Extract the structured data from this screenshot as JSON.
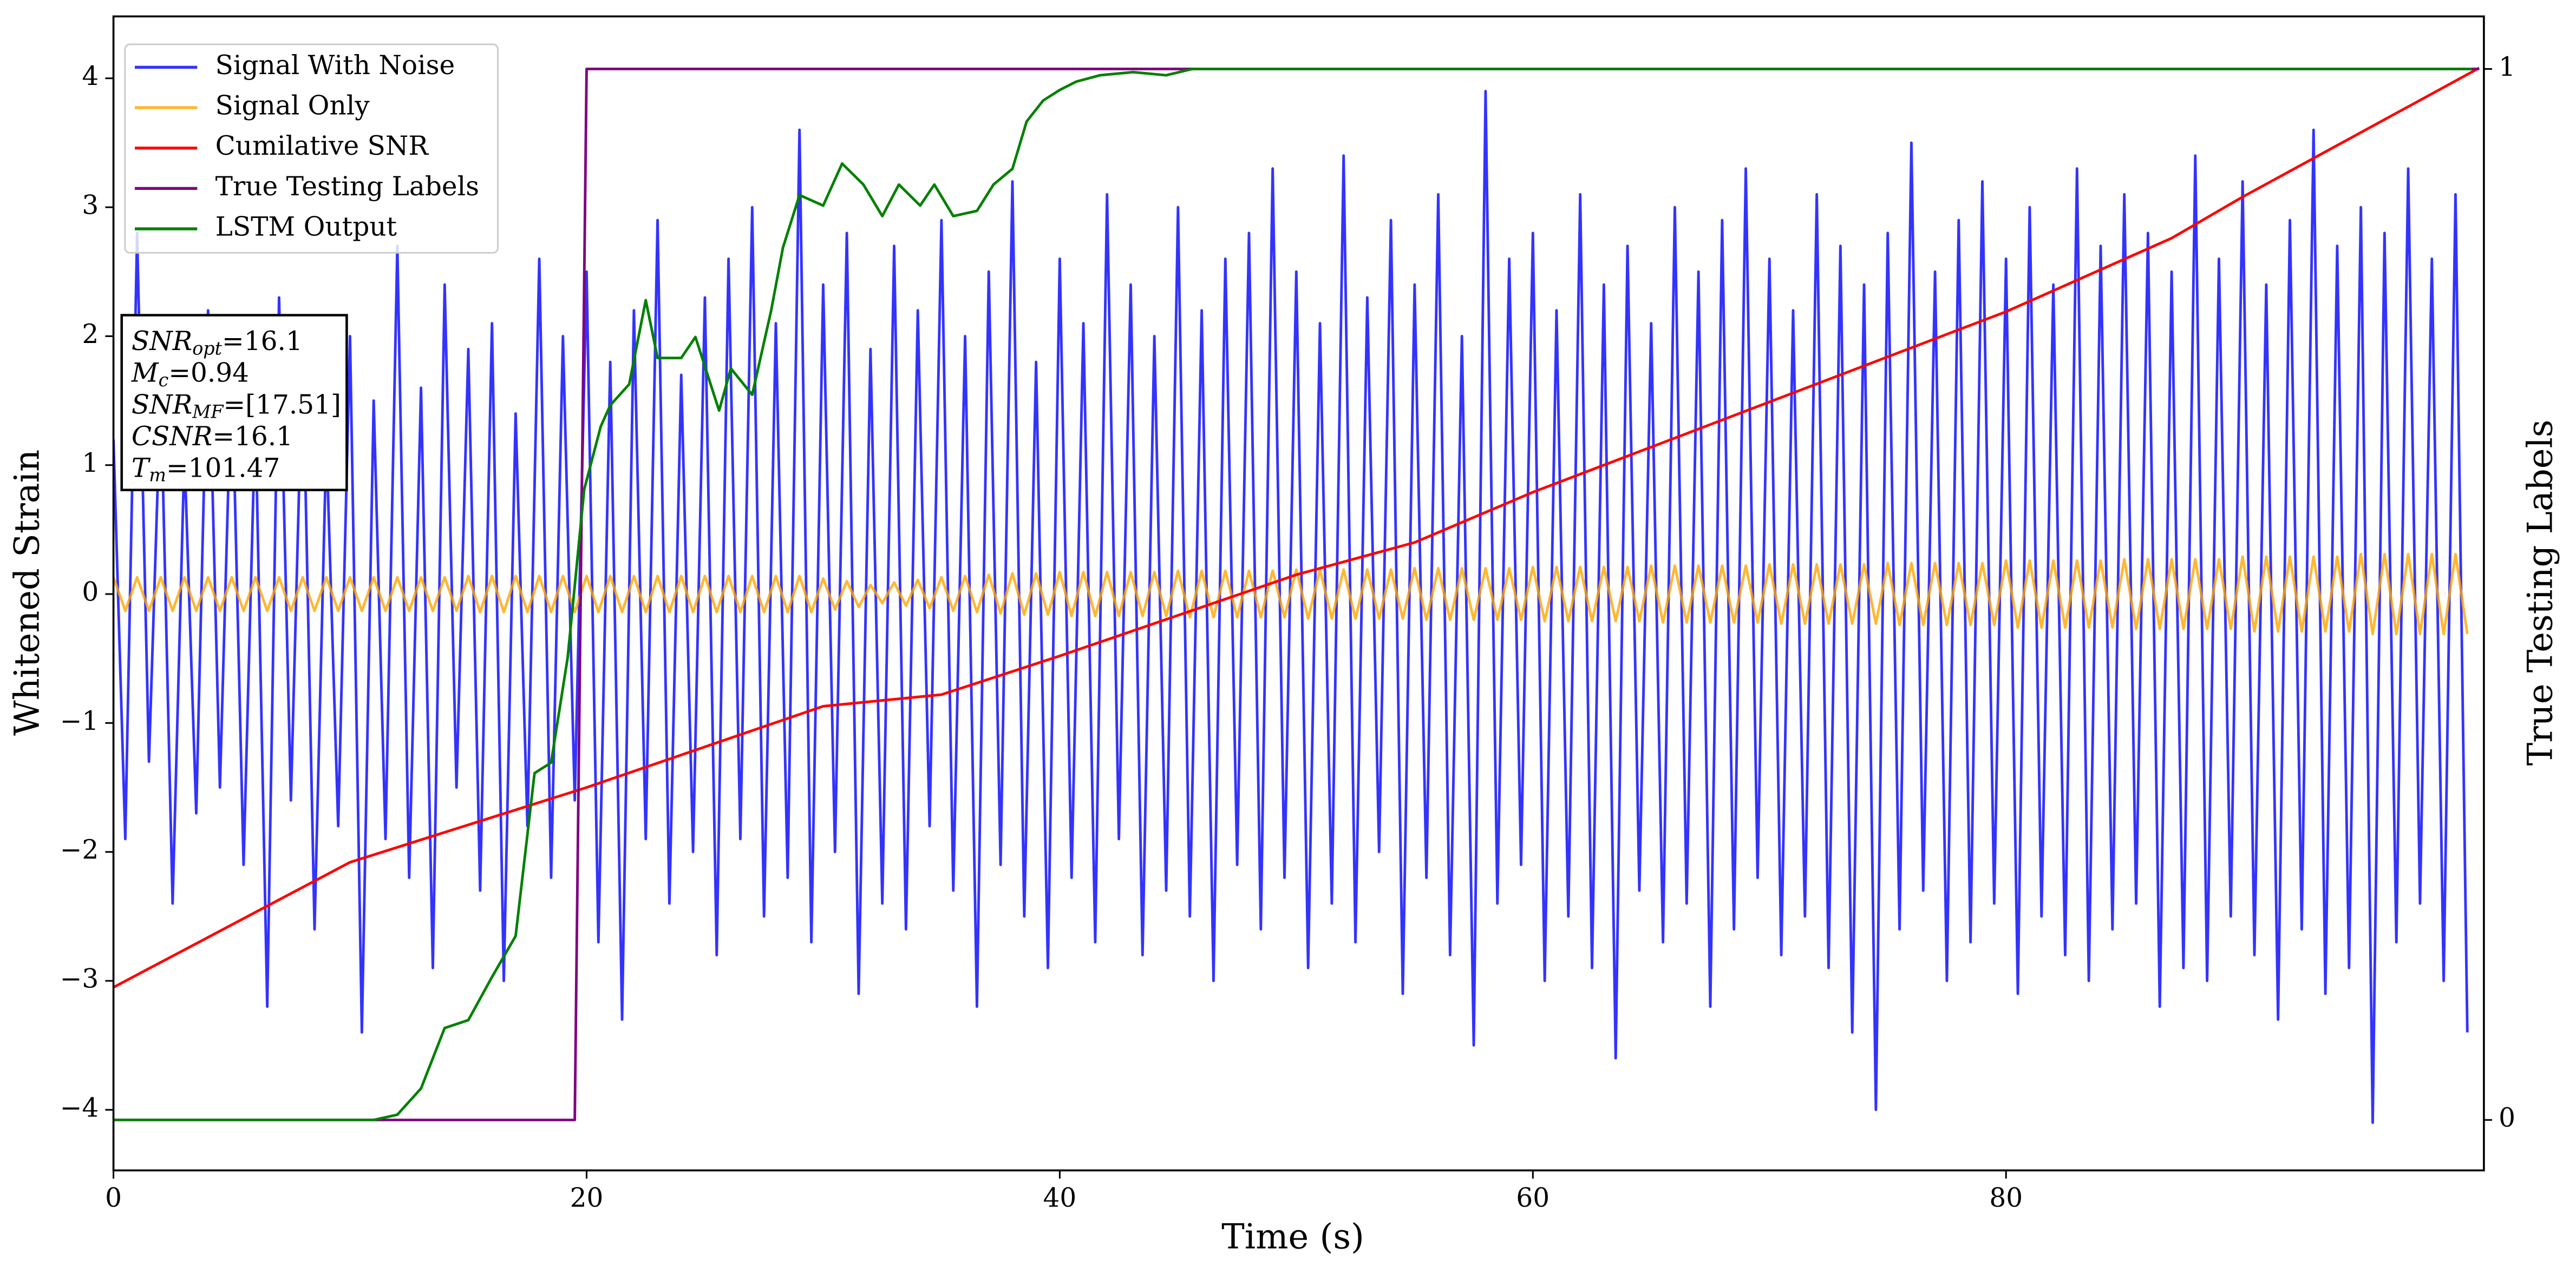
{
  "chart_data": {
    "type": "line",
    "xlabel": "Time (s)",
    "ylabel": "Whitened Strain",
    "y2label": "True Testing Labels",
    "xlim": [
      0,
      100.2
    ],
    "xticks": [
      0,
      20,
      40,
      60,
      80
    ],
    "ylim": [
      -4.47,
      4.48
    ],
    "yticks": [
      {
        "value": -4,
        "label": "−4"
      },
      {
        "value": -3,
        "label": "−3"
      },
      {
        "value": -2,
        "label": "−2"
      },
      {
        "value": -1,
        "label": "−1"
      },
      0,
      1,
      2,
      3,
      4
    ],
    "y2lim": [
      -0.048,
      1.05
    ],
    "y2ticks": [
      0,
      1
    ],
    "legend": "upper left",
    "x": [
      0,
      0.5,
      1,
      1.5,
      2,
      2.5,
      3,
      3.5,
      4,
      4.5,
      5,
      5.5,
      6,
      6.5,
      7,
      7.5,
      8,
      8.5,
      9,
      9.5,
      10,
      10.5,
      11,
      11.5,
      12,
      12.5,
      13,
      13.5,
      14,
      14.5,
      15,
      15.5,
      16,
      16.5,
      17,
      17.5,
      18,
      18.5,
      19,
      19.5,
      20,
      20.5,
      21,
      21.5,
      22,
      22.5,
      23,
      23.5,
      24,
      24.5,
      25,
      25.5,
      26,
      26.5,
      27,
      27.5,
      28,
      28.5,
      29,
      29.5,
      30,
      30.5,
      31,
      31.5,
      32,
      32.5,
      33,
      33.5,
      34,
      34.5,
      35,
      35.5,
      36,
      36.5,
      37,
      37.5,
      38,
      38.5,
      39,
      39.5,
      40,
      40.5,
      41,
      41.5,
      42,
      42.5,
      43,
      43.5,
      44,
      44.5,
      45,
      45.5,
      46,
      46.5,
      47,
      47.5,
      48,
      48.5,
      49,
      49.5,
      50,
      50.5,
      51,
      51.5,
      52,
      52.5,
      53,
      53.5,
      54,
      54.5,
      55,
      55.5,
      56,
      56.5,
      57,
      57.5,
      58,
      58.5,
      59,
      59.5,
      60,
      60.5,
      61,
      61.5,
      62,
      62.5,
      63,
      63.5,
      64,
      64.5,
      65,
      65.5,
      66,
      66.5,
      67,
      67.5,
      68,
      68.5,
      69,
      69.5,
      70,
      70.5,
      71,
      71.5,
      72,
      72.5,
      73,
      73.5,
      74,
      74.5,
      75,
      75.5,
      76,
      76.5,
      77,
      77.5,
      78,
      78.5,
      79,
      79.5,
      80,
      80.5,
      81,
      81.5,
      82,
      82.5,
      83,
      83.5,
      84,
      84.5,
      85,
      85.5,
      86,
      86.5,
      87,
      87.5,
      88,
      88.5,
      89,
      89.5,
      90,
      90.5,
      91,
      91.5,
      92,
      92.5,
      93,
      93.5,
      94,
      94.5,
      95,
      95.5,
      96,
      96.5,
      97,
      97.5,
      98,
      98.5,
      99,
      99.5
    ],
    "series": [
      {
        "name": "Signal With Noise",
        "color": "#0000ff",
        "alpha": 0.8,
        "values": [
          1.2,
          -1.9,
          2.8,
          -1.3,
          1.6,
          -2.4,
          1.1,
          -1.7,
          2.2,
          -1.5,
          1.8,
          -2.1,
          1.4,
          -3.2,
          2.3,
          -1.6,
          1.9,
          -2.6,
          1.2,
          -1.8,
          2.0,
          -3.4,
          1.5,
          -1.9,
          2.7,
          -2.2,
          1.6,
          -2.9,
          2.4,
          -1.5,
          1.9,
          -2.3,
          2.1,
          -3.0,
          1.4,
          -1.8,
          2.6,
          -2.2,
          2.0,
          -1.6,
          2.5,
          -2.7,
          1.8,
          -3.3,
          2.2,
          -1.9,
          2.9,
          -2.4,
          1.7,
          -2.0,
          2.3,
          -2.8,
          2.6,
          -1.9,
          3.0,
          -2.5,
          2.1,
          -2.2,
          3.6,
          -2.7,
          2.4,
          -2.0,
          2.8,
          -3.1,
          1.9,
          -2.4,
          2.7,
          -2.6,
          2.2,
          -1.8,
          2.9,
          -2.3,
          2.0,
          -3.2,
          2.5,
          -2.1,
          3.2,
          -2.5,
          1.8,
          -2.9,
          2.6,
          -2.2,
          2.1,
          -2.7,
          3.1,
          -1.9,
          2.4,
          -2.8,
          2.0,
          -2.3,
          3.0,
          -2.5,
          2.2,
          -3.0,
          2.6,
          -2.1,
          2.8,
          -2.6,
          3.3,
          -2.2,
          2.5,
          -2.9,
          2.1,
          -2.4,
          3.4,
          -2.7,
          2.3,
          -2.0,
          2.9,
          -3.1,
          2.4,
          -2.2,
          3.1,
          -2.8,
          2.0,
          -3.5,
          3.9,
          -2.4,
          2.6,
          -2.1,
          2.8,
          -3.0,
          2.2,
          -2.5,
          3.1,
          -2.9,
          2.4,
          -3.6,
          2.7,
          -2.3,
          2.1,
          -2.7,
          3.0,
          -2.4,
          2.5,
          -3.2,
          2.9,
          -2.6,
          3.3,
          -2.2,
          2.6,
          -2.8,
          2.2,
          -2.5,
          3.1,
          -2.9,
          2.7,
          -3.4,
          2.4,
          -4.0,
          2.8,
          -2.6,
          3.5,
          -2.3,
          2.5,
          -3.0,
          2.9,
          -2.7,
          3.2,
          -2.4,
          2.6,
          -3.1,
          3.0,
          -2.5,
          2.4,
          -2.8,
          3.3,
          -3.0,
          2.7,
          -2.6,
          3.1,
          -2.4,
          2.8,
          -3.2,
          2.5,
          -2.9,
          3.4,
          -3.0,
          2.6,
          -2.5,
          3.2,
          -2.8,
          2.4,
          -3.3,
          2.9,
          -2.6,
          3.6,
          -3.1,
          2.7,
          -2.9,
          3.0,
          -4.1,
          2.8,
          -2.7,
          3.3,
          -2.4,
          2.6,
          -3.0,
          3.1,
          -3.4
        ]
      },
      {
        "name": "Signal Only",
        "color": "#ffa500",
        "alpha": 0.8,
        "values": [
          0.13,
          -0.13,
          0.13,
          -0.13,
          0.13,
          -0.13,
          0.13,
          -0.13,
          0.13,
          -0.13,
          0.13,
          -0.13,
          0.13,
          -0.13,
          0.13,
          -0.13,
          0.13,
          -0.13,
          0.13,
          -0.13,
          0.13,
          -0.13,
          0.13,
          -0.13,
          0.13,
          -0.13,
          0.13,
          -0.13,
          0.13,
          -0.13,
          0.14,
          -0.14,
          0.14,
          -0.14,
          0.14,
          -0.14,
          0.14,
          -0.14,
          0.14,
          -0.14,
          0.14,
          -0.14,
          0.14,
          -0.14,
          0.14,
          -0.14,
          0.14,
          -0.14,
          0.14,
          -0.14,
          0.14,
          -0.14,
          0.14,
          -0.14,
          0.14,
          -0.14,
          0.14,
          -0.14,
          0.14,
          -0.14,
          0.12,
          -0.12,
          0.1,
          -0.1,
          0.07,
          -0.07,
          0.09,
          -0.09,
          0.11,
          -0.11,
          0.13,
          -0.13,
          0.14,
          -0.14,
          0.15,
          -0.15,
          0.16,
          -0.16,
          0.16,
          -0.16,
          0.17,
          -0.17,
          0.17,
          -0.17,
          0.17,
          -0.17,
          0.17,
          -0.17,
          0.17,
          -0.17,
          0.18,
          -0.18,
          0.18,
          -0.18,
          0.18,
          -0.18,
          0.18,
          -0.18,
          0.18,
          -0.18,
          0.19,
          -0.19,
          0.19,
          -0.19,
          0.19,
          -0.19,
          0.19,
          -0.19,
          0.19,
          -0.19,
          0.2,
          -0.2,
          0.2,
          -0.2,
          0.2,
          -0.2,
          0.2,
          -0.2,
          0.2,
          -0.2,
          0.21,
          -0.21,
          0.21,
          -0.21,
          0.21,
          -0.21,
          0.21,
          -0.21,
          0.21,
          -0.21,
          0.22,
          -0.22,
          0.22,
          -0.22,
          0.22,
          -0.22,
          0.22,
          -0.22,
          0.22,
          -0.22,
          0.23,
          -0.23,
          0.23,
          -0.23,
          0.23,
          -0.23,
          0.23,
          -0.23,
          0.23,
          -0.23,
          0.24,
          -0.24,
          0.24,
          -0.24,
          0.24,
          -0.24,
          0.24,
          -0.24,
          0.24,
          -0.24,
          0.26,
          -0.26,
          0.26,
          -0.26,
          0.26,
          -0.26,
          0.26,
          -0.26,
          0.26,
          -0.26,
          0.27,
          -0.27,
          0.27,
          -0.27,
          0.27,
          -0.27,
          0.27,
          -0.27,
          0.27,
          -0.27,
          0.29,
          -0.29,
          0.29,
          -0.29,
          0.29,
          -0.29,
          0.29,
          -0.29,
          0.29,
          -0.29,
          0.31,
          -0.31,
          0.31,
          -0.31,
          0.31,
          -0.31,
          0.31,
          -0.31,
          0.31,
          -0.31
        ]
      },
      {
        "name": "Cumilative SNR",
        "color": "#ff0000",
        "x": [
          0,
          10,
          20,
          30,
          35,
          40,
          50,
          55,
          60,
          70,
          80,
          87,
          90,
          100
        ],
        "values": [
          -3.05,
          -2.08,
          -1.5,
          -0.87,
          -0.78,
          -0.48,
          0.15,
          0.4,
          0.79,
          1.49,
          2.19,
          2.76,
          3.08,
          4.08
        ]
      },
      {
        "name": "True Testing Labels",
        "color": "#800080",
        "axis": "y2",
        "x": [
          0,
          19.5,
          20,
          100
        ],
        "values": [
          0,
          0,
          1,
          1
        ]
      },
      {
        "name": "LSTM Output",
        "color": "#008000",
        "axis": "y2",
        "x": [
          0,
          11,
          12,
          13,
          14,
          15,
          16,
          17,
          17.8,
          18.5,
          19.2,
          19.9,
          20.6,
          21,
          21.8,
          22.5,
          23,
          24,
          24.6,
          25.6,
          26.1,
          27,
          27.8,
          28.3,
          29,
          30,
          30.8,
          31.7,
          32.5,
          33.2,
          34.1,
          34.7,
          35.5,
          36.5,
          37.2,
          38,
          38.6,
          39.3,
          40,
          40.7,
          41.7,
          43.1,
          44.5,
          45.6,
          48,
          99.7
        ],
        "values": [
          0,
          0,
          0.005,
          0.03,
          0.0875,
          0.095,
          0.136,
          0.175,
          0.33,
          0.34,
          0.44,
          0.6,
          0.66,
          0.68,
          0.7,
          0.78,
          0.725,
          0.725,
          0.745,
          0.675,
          0.715,
          0.69,
          0.77,
          0.83,
          0.88,
          0.87,
          0.91,
          0.89,
          0.86,
          0.89,
          0.87,
          0.89,
          0.86,
          0.865,
          0.89,
          0.905,
          0.95,
          0.97,
          0.98,
          0.988,
          0.994,
          0.997,
          0.994,
          1,
          1,
          1
        ]
      }
    ],
    "annotation": [
      {
        "text": "SNR",
        "sub": "opt",
        "value": "=16.1"
      },
      {
        "text": "M",
        "sub": "c",
        "value": "=0.94"
      },
      {
        "text": "SNR",
        "sub": "MF",
        "value": "=[17.51]"
      },
      {
        "text": "CSNR",
        "value": "=16.1"
      },
      {
        "text": "T",
        "sub": "m",
        "value": "=101.47"
      }
    ]
  }
}
